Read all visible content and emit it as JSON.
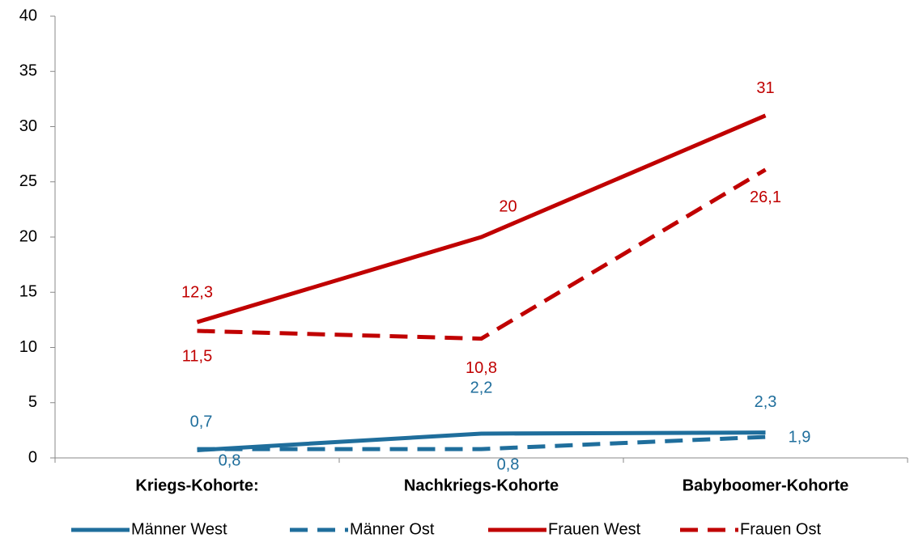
{
  "chart_data": {
    "type": "line",
    "categories": [
      "Kriegs-Kohorte:",
      "Nachkriegs-Kohorte",
      "Babyboomer-Kohorte"
    ],
    "series": [
      {
        "name": "Männer West",
        "color": "#1f6e9c",
        "dash": false,
        "values": [
          0.7,
          2.2,
          2.3
        ],
        "value_labels": [
          "0,7",
          "2,2",
          "2,3"
        ]
      },
      {
        "name": "Männer Ost",
        "color": "#1f6e9c",
        "dash": true,
        "values": [
          0.8,
          0.8,
          1.9
        ],
        "value_labels": [
          "0,8",
          "0,8",
          "1,9"
        ]
      },
      {
        "name": "Frauen West",
        "color": "#c00000",
        "dash": false,
        "values": [
          12.3,
          20,
          31
        ],
        "value_labels": [
          "12,3",
          "20",
          "31"
        ]
      },
      {
        "name": "Frauen Ost",
        "color": "#c00000",
        "dash": true,
        "values": [
          11.5,
          10.8,
          26.1
        ],
        "value_labels": [
          "11,5",
          "10,8",
          "26,1"
        ]
      }
    ],
    "ylim": [
      0,
      40
    ],
    "yticks": [
      0,
      5,
      10,
      15,
      20,
      25,
      30,
      35,
      40
    ],
    "grid": false,
    "legend": "bottom"
  }
}
